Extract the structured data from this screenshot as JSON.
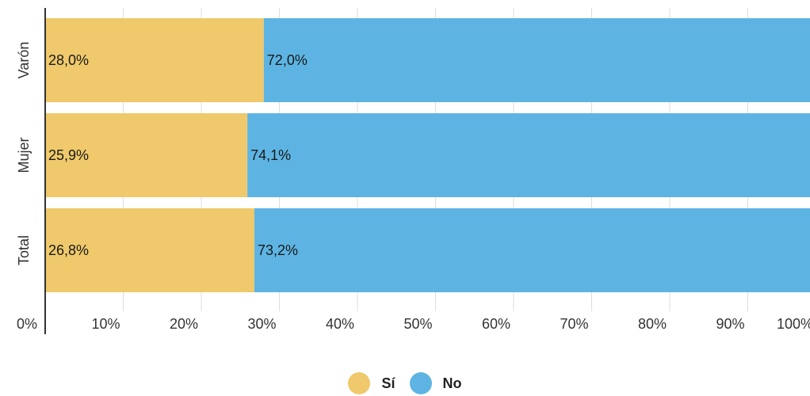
{
  "chart_data": {
    "type": "bar",
    "orientation": "horizontal",
    "stacked": true,
    "categories": [
      "Varón",
      "Mujer",
      "Total"
    ],
    "series": [
      {
        "name": "Sí",
        "color": "#EFC96B",
        "values": [
          28.0,
          25.9,
          26.8
        ],
        "labels": [
          "28,0%",
          "25,9%",
          "26,8%"
        ]
      },
      {
        "name": "No",
        "color": "#5DB4E3",
        "values": [
          72.0,
          74.1,
          73.2
        ],
        "labels": [
          "72,0%",
          "74,1%",
          "73,2%"
        ]
      }
    ],
    "xlim": [
      0,
      100
    ],
    "x_ticks": [
      "0%",
      "10%",
      "20%",
      "30%",
      "40%",
      "50%",
      "60%",
      "70%",
      "80%",
      "90%",
      "100%"
    ],
    "grid": true,
    "legend_position": "bottom-center"
  }
}
